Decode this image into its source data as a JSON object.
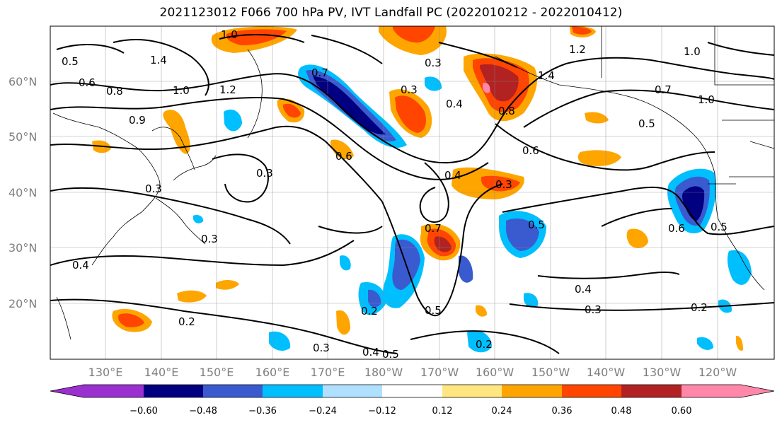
{
  "title": "2021123012 F066 700 hPa PV, IVT Landfall PC (2022010212 - 2022010412)",
  "map": {
    "lat_labels": [
      "60°N",
      "50°N",
      "40°N",
      "30°N",
      "20°N"
    ],
    "lon_labels": [
      "130°E",
      "140°E",
      "150°E",
      "160°E",
      "170°E",
      "180°W",
      "170°W",
      "160°W",
      "150°W",
      "140°W",
      "130°W",
      "120°W"
    ],
    "contour_labels": [
      "1.0",
      "0.5",
      "0.6",
      "0.8",
      "1.4",
      "1.0",
      "1.2",
      "0.9",
      "0.3",
      "0.4",
      "1.2",
      "1.4",
      "1.0",
      "0.8",
      "0.7",
      "0.3",
      "0.4",
      "0.3",
      "0.6",
      "0.3",
      "0.3",
      "0.7",
      "0.5",
      "0.3",
      "0.4",
      "0.2",
      "0.5",
      "0.4",
      "0.3",
      "0.2",
      "0.2",
      "0.3",
      "0.4",
      "0.5",
      "0.2",
      "0.6",
      "0.5",
      "0.6",
      "0.7",
      "0.5",
      "1.0"
    ]
  },
  "colorbar": {
    "ticks": [
      "−0.60",
      "−0.48",
      "−0.36",
      "−0.24",
      "−0.12",
      "0.12",
      "0.24",
      "0.36",
      "0.48",
      "0.60"
    ],
    "colors": [
      "#9b30d0",
      "#000080",
      "#3a5bd0",
      "#00bfff",
      "#b0e0ff",
      "#ffffff",
      "#ffe680",
      "#ffa500",
      "#ff4500",
      "#b22222",
      "#ff88aa",
      "#ff88aa"
    ],
    "low_color": "#9b30d0",
    "high_color": "#ff88aa"
  }
}
